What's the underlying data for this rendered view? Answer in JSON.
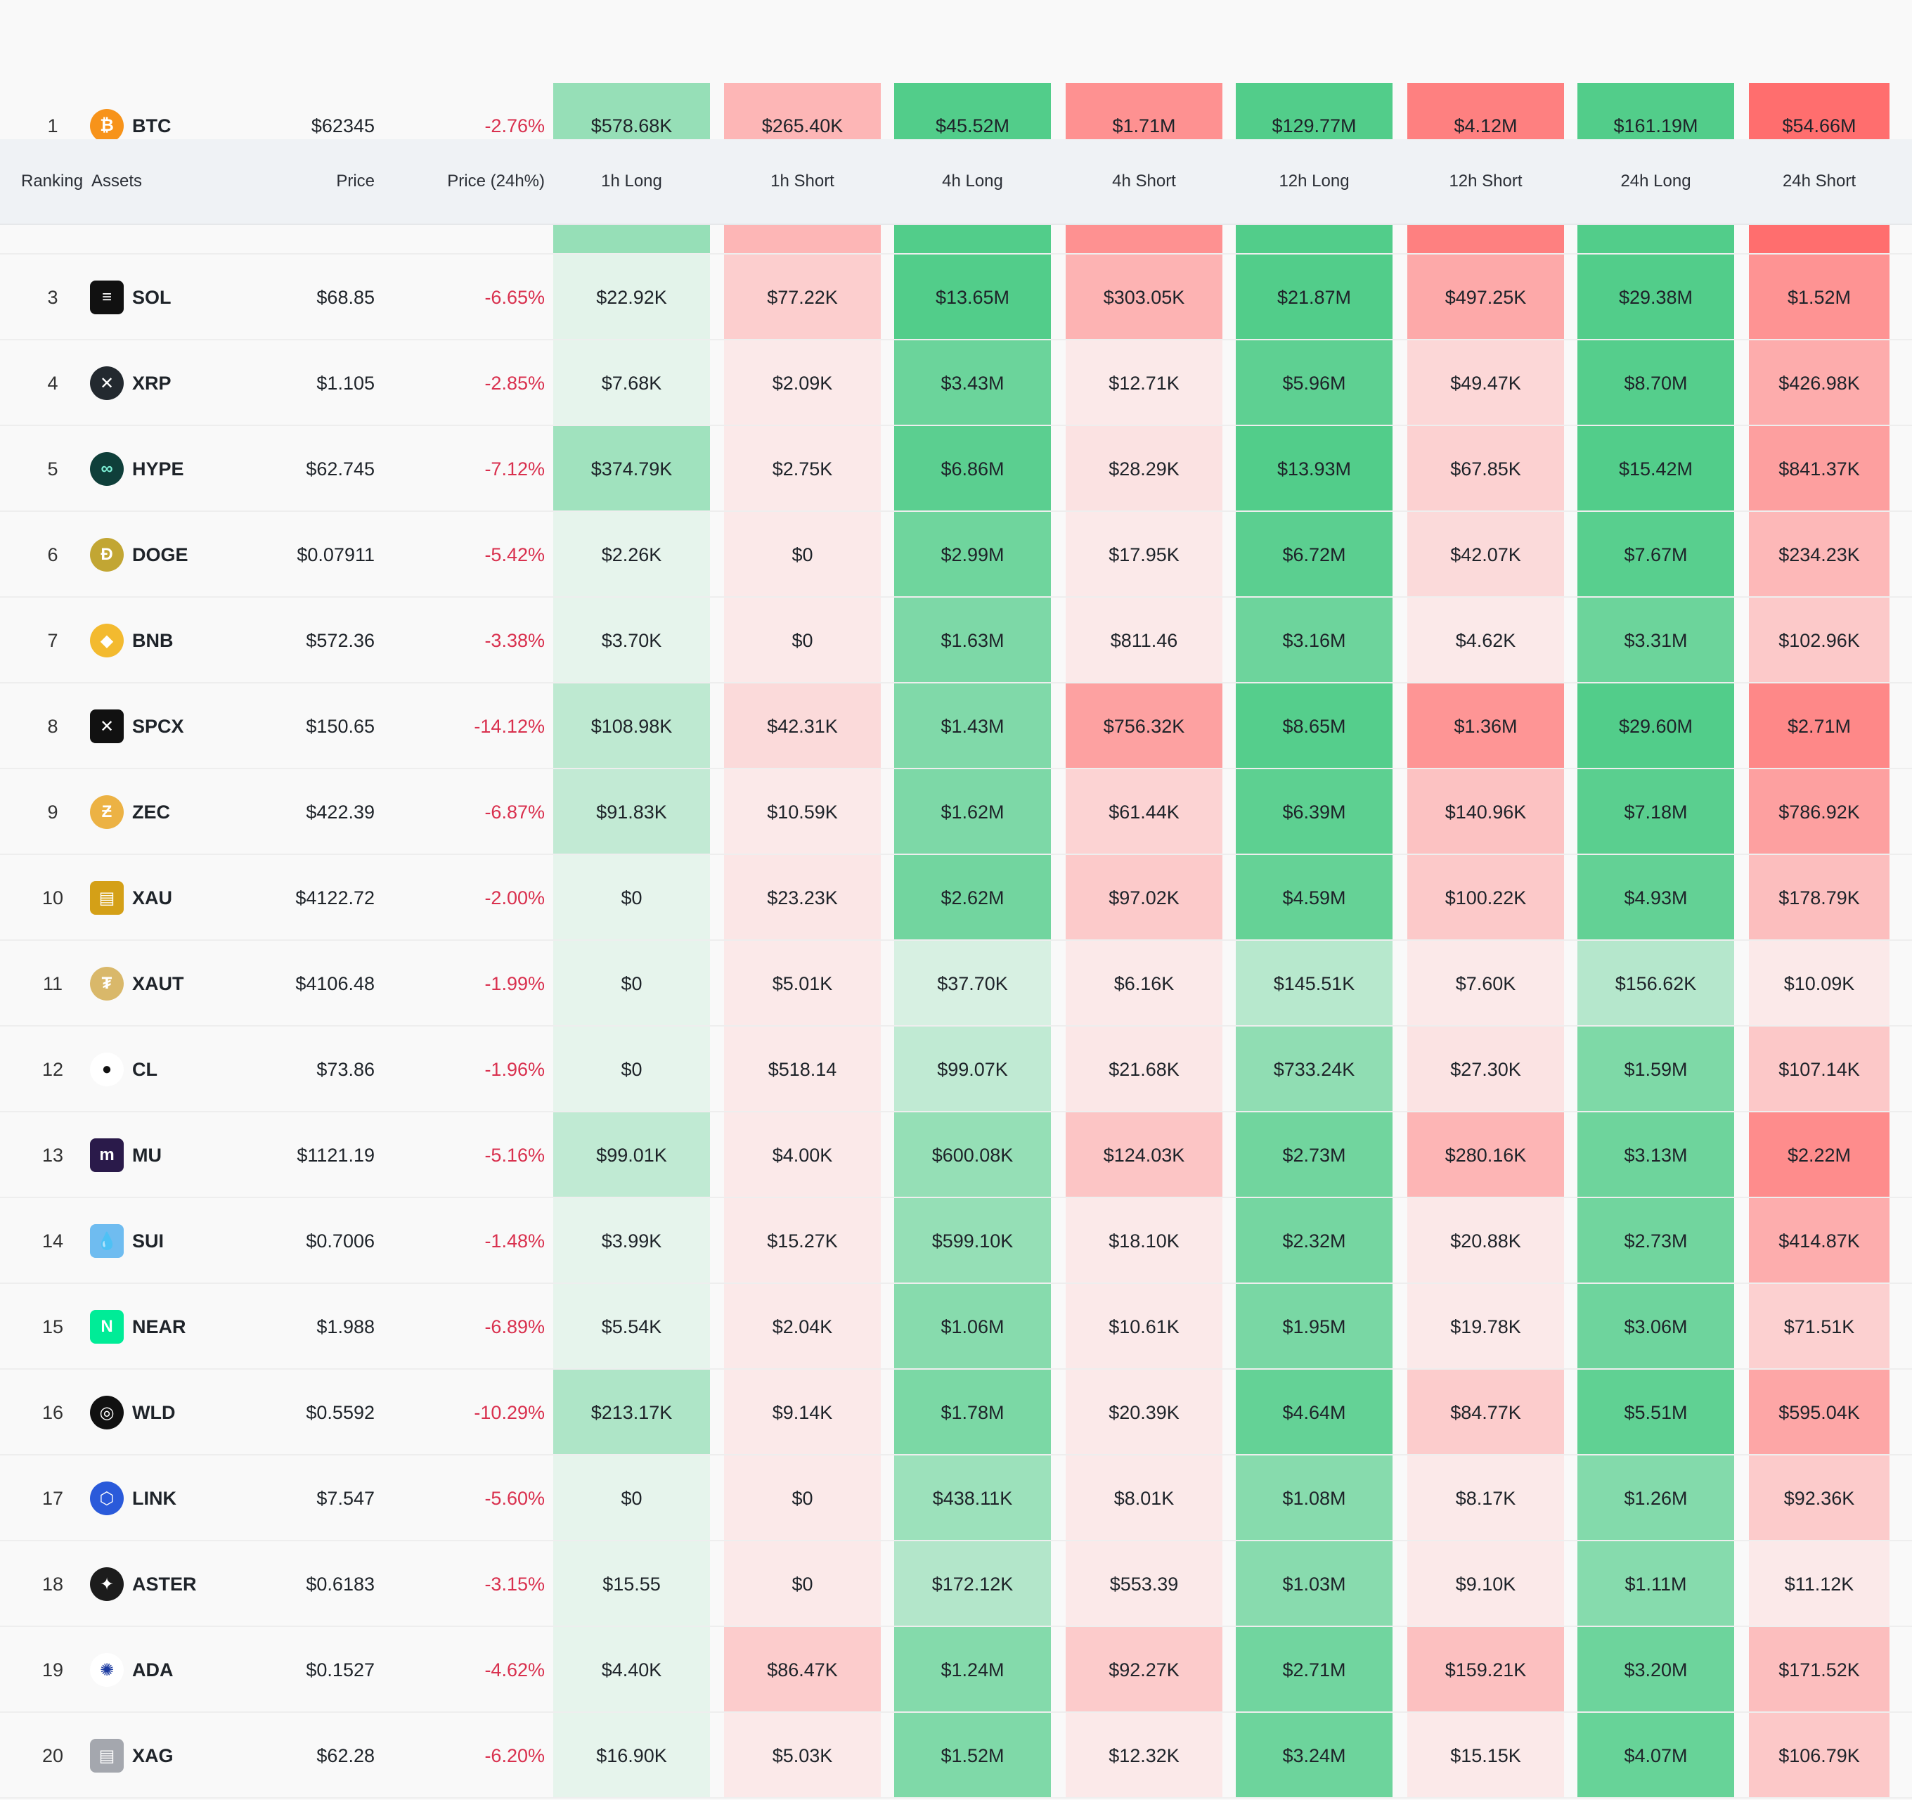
{
  "header": {
    "ranking": "Ranking",
    "assets": "Assets",
    "price": "Price",
    "price_change": "Price (24h%)",
    "long_1h": "1h Long",
    "short_1h": "1h Short",
    "long_4h": "4h Long",
    "short_4h": "4h Short",
    "long_12h": "12h Long",
    "short_12h": "12h Short",
    "long_24h": "24h Long",
    "short_24h": "24h Short"
  },
  "colors": {
    "green_light": "#e6f4ec",
    "green_strong": "#52cd8a",
    "red_light": "#fbe9e9",
    "red_strong": "#ff6e6e",
    "negative_text": "#d9304e"
  },
  "rows": [
    {
      "rank": "1",
      "symbol": "BTC",
      "icon": "bitcoin-icon",
      "icon_glyph": "₿",
      "icon_color": "#f7931a",
      "price": "$62345",
      "change": "-2.76%",
      "l1h": "$578.68K",
      "s1h": "$265.40K",
      "l4h": "$45.52M",
      "s4h": "$1.71M",
      "l12h": "$129.77M",
      "s12h": "$4.12M",
      "l24h": "$161.19M",
      "s24h": "$54.66M"
    },
    {
      "rank": "",
      "symbol": "",
      "icon": "",
      "icon_glyph": "",
      "icon_color": "",
      "price": "",
      "change": "",
      "l1h": "",
      "s1h": "",
      "l4h": "",
      "s4h": "",
      "l12h": "",
      "s12h": "",
      "l24h": "",
      "s24h": ""
    },
    {
      "rank": "3",
      "symbol": "SOL",
      "icon": "solana-icon",
      "icon_glyph": "≡",
      "icon_color": "#111111",
      "price": "$68.85",
      "change": "-6.65%",
      "l1h": "$22.92K",
      "s1h": "$77.22K",
      "l4h": "$13.65M",
      "s4h": "$303.05K",
      "l12h": "$21.87M",
      "s12h": "$497.25K",
      "l24h": "$29.38M",
      "s24h": "$1.52M"
    },
    {
      "rank": "4",
      "symbol": "XRP",
      "icon": "xrp-icon",
      "icon_glyph": "✕",
      "icon_color": "#23292f",
      "price": "$1.105",
      "change": "-2.85%",
      "l1h": "$7.68K",
      "s1h": "$2.09K",
      "l4h": "$3.43M",
      "s4h": "$12.71K",
      "l12h": "$5.96M",
      "s12h": "$49.47K",
      "l24h": "$8.70M",
      "s24h": "$426.98K"
    },
    {
      "rank": "5",
      "symbol": "HYPE",
      "icon": "hyperliquid-icon",
      "icon_glyph": "∞",
      "icon_color": "#0f3f3a",
      "price": "$62.745",
      "change": "-7.12%",
      "l1h": "$374.79K",
      "s1h": "$2.75K",
      "l4h": "$6.86M",
      "s4h": "$28.29K",
      "l12h": "$13.93M",
      "s12h": "$67.85K",
      "l24h": "$15.42M",
      "s24h": "$841.37K"
    },
    {
      "rank": "6",
      "symbol": "DOGE",
      "icon": "dogecoin-icon",
      "icon_glyph": "Ð",
      "icon_color": "#c2a633",
      "price": "$0.07911",
      "change": "-5.42%",
      "l1h": "$2.26K",
      "s1h": "$0",
      "l4h": "$2.99M",
      "s4h": "$17.95K",
      "l12h": "$6.72M",
      "s12h": "$42.07K",
      "l24h": "$7.67M",
      "s24h": "$234.23K"
    },
    {
      "rank": "7",
      "symbol": "BNB",
      "icon": "bnb-icon",
      "icon_glyph": "◆",
      "icon_color": "#f3ba2f",
      "price": "$572.36",
      "change": "-3.38%",
      "l1h": "$3.70K",
      "s1h": "$0",
      "l4h": "$1.63M",
      "s4h": "$811.46",
      "l12h": "$3.16M",
      "s12h": "$4.62K",
      "l24h": "$3.31M",
      "s24h": "$102.96K"
    },
    {
      "rank": "8",
      "symbol": "SPCX",
      "icon": "spacex-icon",
      "icon_glyph": "✕",
      "icon_color": "#111111",
      "price": "$150.65",
      "change": "-14.12%",
      "l1h": "$108.98K",
      "s1h": "$42.31K",
      "l4h": "$1.43M",
      "s4h": "$756.32K",
      "l12h": "$8.65M",
      "s12h": "$1.36M",
      "l24h": "$29.60M",
      "s24h": "$2.71M"
    },
    {
      "rank": "9",
      "symbol": "ZEC",
      "icon": "zcash-icon",
      "icon_glyph": "Ƶ",
      "icon_color": "#ecb244",
      "price": "$422.39",
      "change": "-6.87%",
      "l1h": "$91.83K",
      "s1h": "$10.59K",
      "l4h": "$1.62M",
      "s4h": "$61.44K",
      "l12h": "$6.39M",
      "s12h": "$140.96K",
      "l24h": "$7.18M",
      "s24h": "$786.92K"
    },
    {
      "rank": "10",
      "symbol": "XAU",
      "icon": "gold-bars-icon",
      "icon_glyph": "▤",
      "icon_color": "#d4a017",
      "price": "$4122.72",
      "change": "-2.00%",
      "l1h": "$0",
      "s1h": "$23.23K",
      "l4h": "$2.62M",
      "s4h": "$97.02K",
      "l12h": "$4.59M",
      "s12h": "$100.22K",
      "l24h": "$4.93M",
      "s24h": "$178.79K"
    },
    {
      "rank": "11",
      "symbol": "XAUT",
      "icon": "tether-gold-icon",
      "icon_glyph": "₮",
      "icon_color": "#d9b86a",
      "price": "$4106.48",
      "change": "-1.99%",
      "l1h": "$0",
      "s1h": "$5.01K",
      "l4h": "$37.70K",
      "s4h": "$6.16K",
      "l12h": "$145.51K",
      "s12h": "$7.60K",
      "l24h": "$156.62K",
      "s24h": "$10.09K"
    },
    {
      "rank": "12",
      "symbol": "CL",
      "icon": "oil-drop-icon",
      "icon_glyph": "●",
      "icon_color": "#ffffff",
      "price": "$73.86",
      "change": "-1.96%",
      "l1h": "$0",
      "s1h": "$518.14",
      "l4h": "$99.07K",
      "s4h": "$21.68K",
      "l12h": "$733.24K",
      "s12h": "$27.30K",
      "l24h": "$1.59M",
      "s24h": "$107.14K"
    },
    {
      "rank": "13",
      "symbol": "MU",
      "icon": "micron-icon",
      "icon_glyph": "m",
      "icon_color": "#2a1a4a",
      "price": "$1121.19",
      "change": "-5.16%",
      "l1h": "$99.01K",
      "s1h": "$4.00K",
      "l4h": "$600.08K",
      "s4h": "$124.03K",
      "l12h": "$2.73M",
      "s12h": "$280.16K",
      "l24h": "$3.13M",
      "s24h": "$2.22M"
    },
    {
      "rank": "14",
      "symbol": "SUI",
      "icon": "sui-icon",
      "icon_glyph": "💧",
      "icon_color": "#6fbcf0",
      "price": "$0.7006",
      "change": "-1.48%",
      "l1h": "$3.99K",
      "s1h": "$15.27K",
      "l4h": "$599.10K",
      "s4h": "$18.10K",
      "l12h": "$2.32M",
      "s12h": "$20.88K",
      "l24h": "$2.73M",
      "s24h": "$414.87K"
    },
    {
      "rank": "15",
      "symbol": "NEAR",
      "icon": "near-icon",
      "icon_glyph": "N",
      "icon_color": "#00ec97",
      "price": "$1.988",
      "change": "-6.89%",
      "l1h": "$5.54K",
      "s1h": "$2.04K",
      "l4h": "$1.06M",
      "s4h": "$10.61K",
      "l12h": "$1.95M",
      "s12h": "$19.78K",
      "l24h": "$3.06M",
      "s24h": "$71.51K"
    },
    {
      "rank": "16",
      "symbol": "WLD",
      "icon": "worldcoin-icon",
      "icon_glyph": "◎",
      "icon_color": "#111111",
      "price": "$0.5592",
      "change": "-10.29%",
      "l1h": "$213.17K",
      "s1h": "$9.14K",
      "l4h": "$1.78M",
      "s4h": "$20.39K",
      "l12h": "$4.64M",
      "s12h": "$84.77K",
      "l24h": "$5.51M",
      "s24h": "$595.04K"
    },
    {
      "rank": "17",
      "symbol": "LINK",
      "icon": "chainlink-icon",
      "icon_glyph": "⬡",
      "icon_color": "#2a5ada",
      "price": "$7.547",
      "change": "-5.60%",
      "l1h": "$0",
      "s1h": "$0",
      "l4h": "$438.11K",
      "s4h": "$8.01K",
      "l12h": "$1.08M",
      "s12h": "$8.17K",
      "l24h": "$1.26M",
      "s24h": "$92.36K"
    },
    {
      "rank": "18",
      "symbol": "ASTER",
      "icon": "aster-icon",
      "icon_glyph": "✦",
      "icon_color": "#1c1c1c",
      "price": "$0.6183",
      "change": "-3.15%",
      "l1h": "$15.55",
      "s1h": "$0",
      "l4h": "$172.12K",
      "s4h": "$553.39",
      "l12h": "$1.03M",
      "s12h": "$9.10K",
      "l24h": "$1.11M",
      "s24h": "$11.12K"
    },
    {
      "rank": "19",
      "symbol": "ADA",
      "icon": "cardano-icon",
      "icon_glyph": "✺",
      "icon_color": "#ffffff",
      "price": "$0.1527",
      "change": "-4.62%",
      "l1h": "$4.40K",
      "s1h": "$86.47K",
      "l4h": "$1.24M",
      "s4h": "$92.27K",
      "l12h": "$2.71M",
      "s12h": "$159.21K",
      "l24h": "$3.20M",
      "s24h": "$171.52K"
    },
    {
      "rank": "20",
      "symbol": "XAG",
      "icon": "silver-bars-icon",
      "icon_glyph": "▤",
      "icon_color": "#a4a7ae",
      "price": "$62.28",
      "change": "-6.20%",
      "l1h": "$16.90K",
      "s1h": "$5.03K",
      "l4h": "$1.52M",
      "s4h": "$12.32K",
      "l12h": "$3.24M",
      "s12h": "$15.15K",
      "l24h": "$4.07M",
      "s24h": "$106.79K"
    }
  ]
}
